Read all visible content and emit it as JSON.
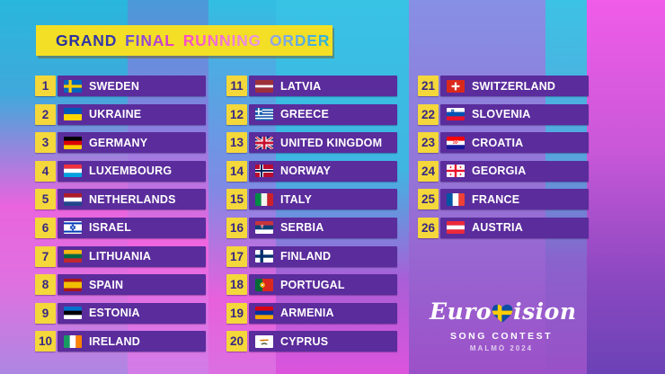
{
  "title": {
    "words": [
      {
        "text": "GRAND",
        "c1": "#232e9b",
        "c2": "#3b3aae"
      },
      {
        "text": "FINAL",
        "c1": "#5b51d6",
        "c2": "#e93fc9"
      },
      {
        "text": "RUNNING",
        "c1": "#fa4bc4",
        "c2": "#e79be8"
      },
      {
        "text": "ORDER",
        "c1": "#9aa3e8",
        "c2": "#27b4da"
      }
    ]
  },
  "colors": {
    "banner_yellow": "#f3df25",
    "number_yellow": "#f4d73a",
    "number_text": "#372883",
    "bar_purple": "#5a2c9c"
  },
  "columns": [
    {
      "entries": [
        {
          "num": "1",
          "country": "SWEDEN",
          "flag": "se"
        },
        {
          "num": "2",
          "country": "UKRAINE",
          "flag": "ua"
        },
        {
          "num": "3",
          "country": "GERMANY",
          "flag": "de"
        },
        {
          "num": "4",
          "country": "LUXEMBOURG",
          "flag": "lu"
        },
        {
          "num": "5",
          "country": "NETHERLANDS",
          "flag": "nl"
        },
        {
          "num": "6",
          "country": "ISRAEL",
          "flag": "il"
        },
        {
          "num": "7",
          "country": "LITHUANIA",
          "flag": "lt"
        },
        {
          "num": "8",
          "country": "SPAIN",
          "flag": "es"
        },
        {
          "num": "9",
          "country": "ESTONIA",
          "flag": "ee"
        },
        {
          "num": "10",
          "country": "IRELAND",
          "flag": "ie"
        }
      ]
    },
    {
      "entries": [
        {
          "num": "11",
          "country": "LATVIA",
          "flag": "lv"
        },
        {
          "num": "12",
          "country": "GREECE",
          "flag": "gr"
        },
        {
          "num": "13",
          "country": "UNITED KINGDOM",
          "flag": "gb"
        },
        {
          "num": "14",
          "country": "NORWAY",
          "flag": "no"
        },
        {
          "num": "15",
          "country": "ITALY",
          "flag": "it"
        },
        {
          "num": "16",
          "country": "SERBIA",
          "flag": "rs"
        },
        {
          "num": "17",
          "country": "FINLAND",
          "flag": "fi"
        },
        {
          "num": "18",
          "country": "PORTUGAL",
          "flag": "pt"
        },
        {
          "num": "19",
          "country": "ARMENIA",
          "flag": "am"
        },
        {
          "num": "20",
          "country": "CYPRUS",
          "flag": "cy"
        }
      ]
    },
    {
      "entries": [
        {
          "num": "21",
          "country": "SWITZERLAND",
          "flag": "ch"
        },
        {
          "num": "22",
          "country": "SLOVENIA",
          "flag": "si"
        },
        {
          "num": "23",
          "country": "CROATIA",
          "flag": "hr"
        },
        {
          "num": "24",
          "country": "GEORGIA",
          "flag": "ge"
        },
        {
          "num": "25",
          "country": "FRANCE",
          "flag": "fr"
        },
        {
          "num": "26",
          "country": "AUSTRIA",
          "flag": "at"
        }
      ]
    }
  ],
  "logo": {
    "wordmark_left": "Euro",
    "wordmark_right": "ision",
    "line2": "SONG CONTEST",
    "line3": "MALMÖ 2024"
  }
}
